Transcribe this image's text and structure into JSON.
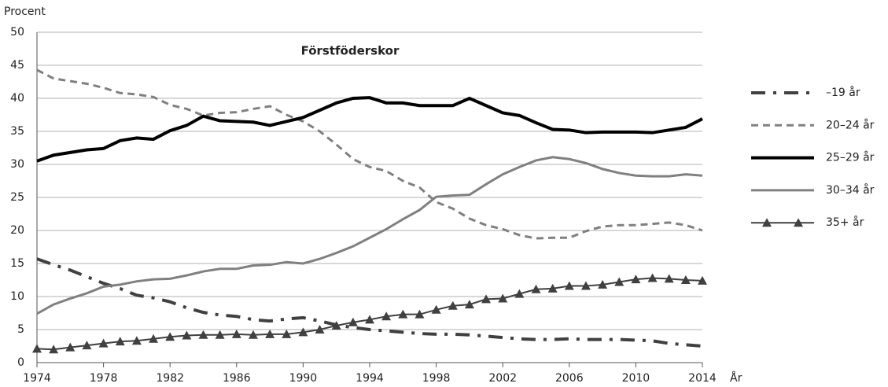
{
  "chart_data": {
    "type": "line",
    "title": "Förstföderskor",
    "ylabel": "Procent",
    "xlabel": "År",
    "x": [
      1974,
      1975,
      1976,
      1977,
      1978,
      1979,
      1980,
      1981,
      1982,
      1983,
      1984,
      1985,
      1986,
      1987,
      1988,
      1989,
      1990,
      1991,
      1992,
      1993,
      1994,
      1995,
      1996,
      1997,
      1998,
      1999,
      2000,
      2001,
      2002,
      2003,
      2004,
      2005,
      2006,
      2007,
      2008,
      2009,
      2010,
      2011,
      2012,
      2013,
      2014
    ],
    "xlim": [
      1974,
      2014
    ],
    "xticks": [
      1974,
      1978,
      1982,
      1986,
      1990,
      1994,
      1998,
      2002,
      2006,
      2010,
      2014
    ],
    "ylim": [
      0,
      50
    ],
    "yticks": [
      0,
      5,
      10,
      15,
      20,
      25,
      30,
      35,
      40,
      45,
      50
    ],
    "grid": true,
    "legend": "right",
    "series": [
      {
        "name": "–19 år",
        "color": "#404040",
        "dash": "dashdot",
        "linewidth": 4,
        "values": [
          15.7,
          14.8,
          14,
          13,
          12,
          11.2,
          10.2,
          9.8,
          9.2,
          8.3,
          7.6,
          7.2,
          7.0,
          6.5,
          6.3,
          6.6,
          6.8,
          6.3,
          5.7,
          5.3,
          5.0,
          4.8,
          4.6,
          4.4,
          4.3,
          4.3,
          4.2,
          4.0,
          3.8,
          3.6,
          3.5,
          3.5,
          3.6,
          3.5,
          3.5,
          3.5,
          3.4,
          3.3,
          2.9,
          2.7,
          2.5
        ]
      },
      {
        "name": "20–24 år",
        "color": "#808080",
        "dash": "dashed",
        "linewidth": 3,
        "values": [
          44.3,
          43.0,
          42.6,
          42.2,
          41.6,
          40.8,
          40.6,
          40.2,
          39.0,
          38.4,
          37.4,
          37.8,
          37.9,
          38.4,
          38.8,
          37.5,
          36.5,
          35.0,
          33.0,
          30.8,
          29.6,
          29.0,
          27.5,
          26.5,
          24.3,
          23.3,
          21.8,
          20.8,
          20.2,
          19.3,
          18.8,
          18.9,
          18.9,
          19.9,
          20.6,
          20.8,
          20.8,
          21.0,
          21.2,
          20.8,
          20.0
        ]
      },
      {
        "name": "25–29 år",
        "color": "#000000",
        "dash": "solid",
        "linewidth": 4,
        "values": [
          30.5,
          31.4,
          31.8,
          32.2,
          32.4,
          33.6,
          34.0,
          33.8,
          35.1,
          35.9,
          37.3,
          36.6,
          36.5,
          36.4,
          35.9,
          36.5,
          37.1,
          38.2,
          39.3,
          40.0,
          40.1,
          39.3,
          39.3,
          38.9,
          38.9,
          38.9,
          40.0,
          38.9,
          37.8,
          37.4,
          36.3,
          35.3,
          35.2,
          34.8,
          34.9,
          34.9,
          34.9,
          34.8,
          35.2,
          35.6,
          36.9
        ]
      },
      {
        "name": "30–34 år",
        "color": "#808080",
        "dash": "solid",
        "linewidth": 3,
        "values": [
          7.4,
          8.8,
          9.7,
          10.5,
          11.5,
          11.8,
          12.3,
          12.6,
          12.7,
          13.2,
          13.8,
          14.2,
          14.2,
          14.7,
          14.8,
          15.2,
          15.0,
          15.7,
          16.6,
          17.6,
          18.9,
          20.2,
          21.7,
          23.1,
          25.1,
          25.3,
          25.4,
          27.0,
          28.5,
          29.6,
          30.6,
          31.1,
          30.8,
          30.2,
          29.3,
          28.7,
          28.3,
          28.2,
          28.2,
          28.5,
          28.3
        ]
      },
      {
        "name": "35+ år",
        "color": "#404040",
        "dash": "solid",
        "linewidth": 2,
        "marker": "triangle",
        "values": [
          2.1,
          2.0,
          2.3,
          2.6,
          2.9,
          3.2,
          3.3,
          3.6,
          3.9,
          4.1,
          4.2,
          4.2,
          4.3,
          4.2,
          4.3,
          4.3,
          4.6,
          5.0,
          5.6,
          6.1,
          6.5,
          7.0,
          7.3,
          7.3,
          8.0,
          8.6,
          8.8,
          9.6,
          9.7,
          10.4,
          11.1,
          11.2,
          11.6,
          11.6,
          11.8,
          12.2,
          12.6,
          12.8,
          12.7,
          12.5,
          12.4
        ]
      }
    ]
  }
}
